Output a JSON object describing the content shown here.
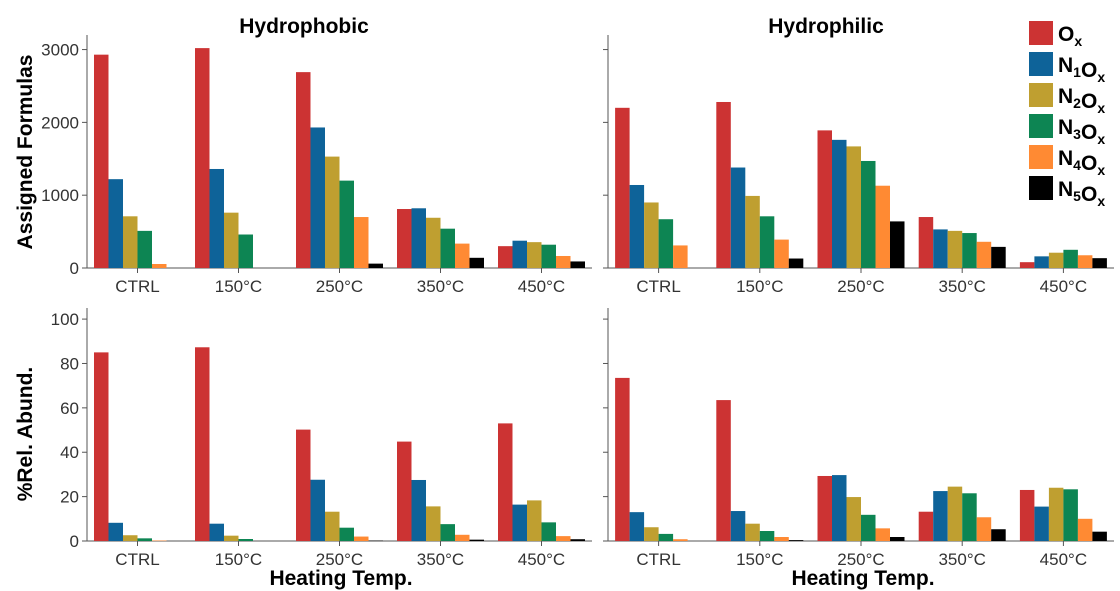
{
  "figure": {
    "col_titles": [
      "Hydrophobic",
      "Hydrophilic"
    ],
    "row_ylabels": [
      "Assigned Formulas",
      "%Rel. Abund."
    ],
    "xlabel": "Heating Temp."
  },
  "legend": {
    "items": [
      {
        "key": "Ox",
        "main": "O",
        "sub": "x",
        "parts": [
          [
            "O",
            "x"
          ]
        ],
        "color": "#cc3333"
      },
      {
        "key": "N1Ox",
        "main": "N",
        "sub": "1",
        "parts": [
          [
            "N",
            "1"
          ],
          [
            "O",
            "x"
          ]
        ],
        "color": "#0e6399"
      },
      {
        "key": "N2Ox",
        "main": "N",
        "sub": "2",
        "parts": [
          [
            "N",
            "2"
          ],
          [
            "O",
            "x"
          ]
        ],
        "color": "#bf9f30"
      },
      {
        "key": "N3Ox",
        "main": "N",
        "sub": "3",
        "parts": [
          [
            "N",
            "3"
          ],
          [
            "O",
            "x"
          ]
        ],
        "color": "#0d8553"
      },
      {
        "key": "N4Ox",
        "main": "N",
        "sub": "4",
        "parts": [
          [
            "N",
            "4"
          ],
          [
            "O",
            "x"
          ]
        ],
        "color": "#ff8a33"
      },
      {
        "key": "N5Ox",
        "main": "N",
        "sub": "5",
        "parts": [
          [
            "N",
            "5"
          ],
          [
            "O",
            "x"
          ]
        ],
        "color": "#000000"
      }
    ]
  },
  "chart_data": [
    {
      "type": "bar",
      "panel": "top-left",
      "title": "Hydrophobic",
      "ylabel": "Assigned Formulas",
      "xlabel": "",
      "categories": [
        "CTRL",
        "150°C",
        "250°C",
        "350°C",
        "450°C"
      ],
      "ylim": [
        0,
        3200
      ],
      "yticks": [
        0,
        1000,
        2000,
        3000
      ],
      "series": [
        {
          "name": "Ox",
          "values": [
            2930,
            3020,
            2690,
            810,
            300
          ]
        },
        {
          "name": "N1Ox",
          "values": [
            1220,
            1360,
            1930,
            820,
            375
          ]
        },
        {
          "name": "N2Ox",
          "values": [
            710,
            760,
            1530,
            690,
            355
          ]
        },
        {
          "name": "N3Ox",
          "values": [
            510,
            460,
            1200,
            540,
            320
          ]
        },
        {
          "name": "N4Ox",
          "values": [
            55,
            0,
            700,
            335,
            165
          ]
        },
        {
          "name": "N5Ox",
          "values": [
            0,
            0,
            60,
            140,
            90
          ]
        }
      ]
    },
    {
      "type": "bar",
      "panel": "top-right",
      "title": "Hydrophilic",
      "ylabel": "",
      "xlabel": "",
      "categories": [
        "CTRL",
        "150°C",
        "250°C",
        "350°C",
        "450°C"
      ],
      "ylim": [
        0,
        3200
      ],
      "yticks": [
        0,
        1000,
        2000,
        3000
      ],
      "series": [
        {
          "name": "Ox",
          "values": [
            2200,
            2280,
            1890,
            700,
            80
          ]
        },
        {
          "name": "N1Ox",
          "values": [
            1140,
            1380,
            1760,
            530,
            160
          ]
        },
        {
          "name": "N2Ox",
          "values": [
            900,
            990,
            1670,
            510,
            210
          ]
        },
        {
          "name": "N3Ox",
          "values": [
            670,
            710,
            1470,
            480,
            250
          ]
        },
        {
          "name": "N4Ox",
          "values": [
            310,
            390,
            1130,
            360,
            175
          ]
        },
        {
          "name": "N5Ox",
          "values": [
            0,
            130,
            640,
            290,
            135
          ]
        }
      ]
    },
    {
      "type": "bar",
      "panel": "bottom-left",
      "title": "",
      "ylabel": "%Rel. Abund.",
      "xlabel": "Heating Temp.",
      "categories": [
        "CTRL",
        "150°C",
        "250°C",
        "350°C",
        "450°C"
      ],
      "ylim": [
        0,
        105
      ],
      "yticks": [
        0,
        20,
        40,
        60,
        80,
        100
      ],
      "series": [
        {
          "name": "Ox",
          "values": [
            85,
            87.3,
            50.2,
            44.8,
            53
          ]
        },
        {
          "name": "N1Ox",
          "values": [
            8.2,
            7.8,
            27.6,
            27.5,
            16.4
          ]
        },
        {
          "name": "N2Ox",
          "values": [
            2.6,
            2.4,
            13.2,
            15.6,
            18.3
          ]
        },
        {
          "name": "N3Ox",
          "values": [
            1.2,
            0.9,
            6,
            7.6,
            8.4
          ]
        },
        {
          "name": "N4Ox",
          "values": [
            0.2,
            0,
            2,
            2.8,
            2.2
          ]
        },
        {
          "name": "N5Ox",
          "values": [
            0,
            0,
            0.2,
            0.6,
            0.8
          ]
        }
      ]
    },
    {
      "type": "bar",
      "panel": "bottom-right",
      "title": "",
      "ylabel": "",
      "xlabel": "Heating Temp.",
      "categories": [
        "CTRL",
        "150°C",
        "250°C",
        "350°C",
        "450°C"
      ],
      "ylim": [
        0,
        105
      ],
      "yticks": [
        0,
        20,
        40,
        60,
        80,
        100
      ],
      "series": [
        {
          "name": "Ox",
          "values": [
            73.5,
            63.5,
            29.3,
            13.2,
            23
          ]
        },
        {
          "name": "N1Ox",
          "values": [
            13,
            13.5,
            29.7,
            22.5,
            15.5
          ]
        },
        {
          "name": "N2Ox",
          "values": [
            6.2,
            7.8,
            19.8,
            24.5,
            24
          ]
        },
        {
          "name": "N3Ox",
          "values": [
            3.2,
            4.5,
            11.8,
            21.5,
            23.3
          ]
        },
        {
          "name": "N4Ox",
          "values": [
            0.8,
            1.8,
            5.7,
            10.7,
            10
          ]
        },
        {
          "name": "N5Ox",
          "values": [
            0,
            0.4,
            1.8,
            5.3,
            4.2
          ]
        }
      ]
    }
  ]
}
